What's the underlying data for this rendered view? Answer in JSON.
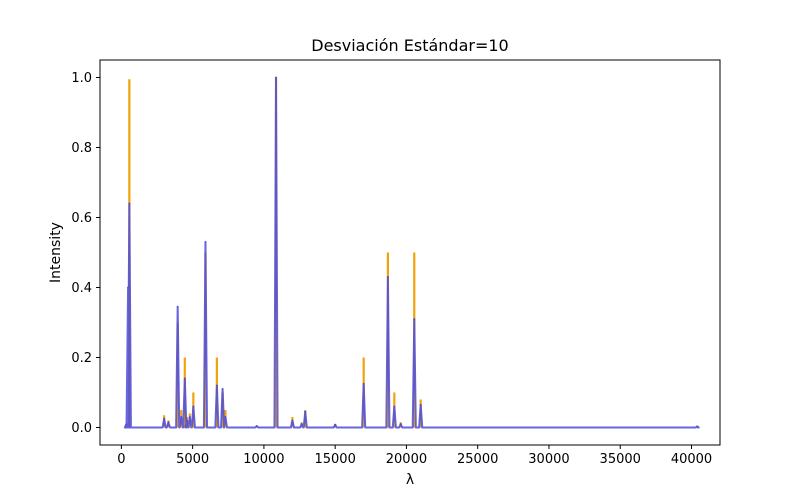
{
  "chart_data": {
    "type": "line",
    "title": "Desviación Estándar=10",
    "xlabel": "λ",
    "ylabel": "Intensity",
    "xlim": [
      -1500,
      42000
    ],
    "ylim": [
      -0.05,
      1.05
    ],
    "xticks": [
      0,
      5000,
      10000,
      15000,
      20000,
      25000,
      30000,
      35000,
      40000
    ],
    "yticks": [
      0.0,
      0.2,
      0.4,
      0.6,
      0.8,
      1.0
    ],
    "grid": false,
    "legend": "none",
    "series": [
      {
        "color": "#f0a30a",
        "type": "stick",
        "x": [
          350,
          560,
          3000,
          3300,
          3950,
          4200,
          4450,
          4600,
          4800,
          5050,
          5900,
          6700,
          7100,
          7300,
          9500,
          10850,
          12000,
          12650,
          12900,
          15000,
          17000,
          18700,
          19150,
          19600,
          20550,
          21000
        ],
        "y": [
          0.01,
          0.995,
          0.035,
          0.02,
          0.3,
          0.05,
          0.2,
          0.03,
          0.04,
          0.1,
          0.5,
          0.2,
          0.1,
          0.05,
          0.005,
          1.0,
          0.03,
          0.015,
          0.05,
          0.01,
          0.2,
          0.5,
          0.1,
          0.015,
          0.5,
          0.08
        ]
      },
      {
        "color": "#4b4bdc",
        "type": "line",
        "x": [
          350,
          470,
          560,
          3000,
          3300,
          3950,
          4200,
          4450,
          4600,
          4800,
          5050,
          5900,
          6700,
          7100,
          7300,
          9500,
          10850,
          12000,
          12650,
          12900,
          15000,
          17000,
          18700,
          19150,
          19600,
          20550,
          21000,
          40400
        ],
        "y": [
          0.01,
          0.4,
          0.64,
          0.025,
          0.015,
          0.345,
          0.03,
          0.14,
          0.02,
          0.03,
          0.06,
          0.53,
          0.12,
          0.11,
          0.03,
          0.004,
          1.0,
          0.02,
          0.01,
          0.045,
          0.008,
          0.125,
          0.43,
          0.06,
          0.01,
          0.31,
          0.065,
          0.003
        ]
      }
    ]
  }
}
